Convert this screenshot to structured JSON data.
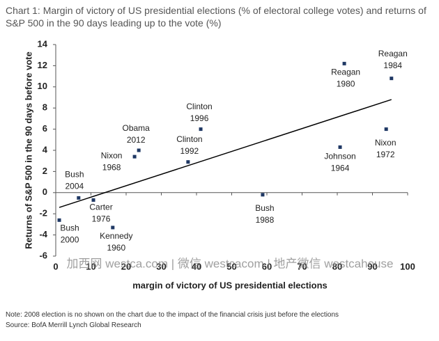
{
  "chart_data": {
    "type": "scatter",
    "title": "Chart 1: Margin of victory of US presidential elections (% of electoral college votes) and returns of S&P 500 in the 90 days leading up to the vote (%)",
    "x_label": "margin of victory of US presidential elections",
    "y_label": "Returns of S&P 500 in the 90 days before vote",
    "color": "#1f3864",
    "points": [
      {
        "label": "Bush",
        "year": 2000,
        "x": 1,
        "y": -2.6
      },
      {
        "label": "Bush",
        "year": 2004,
        "x": 6.5,
        "y": -0.5
      },
      {
        "label": "Carter",
        "year": 1976,
        "x": 10.7,
        "y": -0.7
      },
      {
        "label": "Kennedy",
        "year": 1960,
        "x": 16.2,
        "y": -3.3
      },
      {
        "label": "Nixon",
        "year": 1968,
        "x": 22.4,
        "y": 3.4
      },
      {
        "label": "Obama",
        "year": 2012,
        "x": 23.6,
        "y": 4.0
      },
      {
        "label": "Clinton",
        "year": 1992,
        "x": 37.6,
        "y": 2.9
      },
      {
        "label": "Clinton",
        "year": 1996,
        "x": 41.2,
        "y": 6.0
      },
      {
        "label": "Bush",
        "year": 1988,
        "x": 58.8,
        "y": -0.2
      },
      {
        "label": "Johnson",
        "year": 1964,
        "x": 80.8,
        "y": 4.3
      },
      {
        "label": "Reagan",
        "year": 1980,
        "x": 82,
        "y": 12.2
      },
      {
        "label": "Nixon",
        "year": 1972,
        "x": 93.9,
        "y": 6.0
      },
      {
        "label": "Reagan",
        "year": 1984,
        "x": 95.4,
        "y": 10.8
      }
    ],
    "trendline": {
      "x": [
        1,
        95.4
      ],
      "y": [
        -1.4,
        8.8
      ]
    },
    "xlim": [
      0,
      100
    ],
    "xticks": [
      0,
      10,
      20,
      30,
      40,
      50,
      60,
      70,
      80,
      90,
      100
    ],
    "ylim": [
      -6,
      14
    ],
    "yticks": [
      -6,
      -4,
      -2,
      0,
      2,
      4,
      6,
      8,
      10,
      12,
      14
    ],
    "grid": false,
    "watermark": "加西网 westca.com | 微信 westcacom | 地产微信 westcahouse",
    "note": "Note: 2008 election is no shown on the chart due to the impact of the financial crisis just before the elections",
    "source": "Source: BofA Merrill Lynch Global Research"
  }
}
